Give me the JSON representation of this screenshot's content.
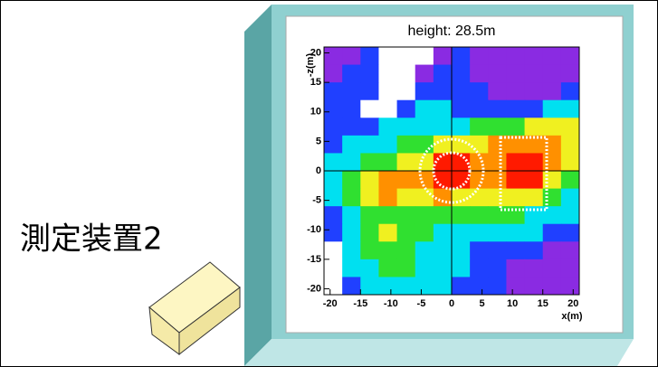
{
  "label": "測定装置2",
  "chart_data": {
    "type": "heatmap",
    "title": "height: 28.5m",
    "xlabel": "x(m)",
    "ylabel": "-z(m)",
    "xlim": [
      -21,
      21
    ],
    "ylim": [
      -21,
      21
    ],
    "xticks": [
      -20,
      -15,
      -10,
      -5,
      0,
      5,
      10,
      15,
      20
    ],
    "yticks": [
      -20,
      -15,
      -10,
      -5,
      0,
      5,
      10,
      15,
      20
    ],
    "xbins": [
      -21,
      -18,
      -15,
      -12,
      -9,
      -6,
      -3,
      0,
      3,
      6,
      9,
      12,
      15,
      18,
      21
    ],
    "ybins": [
      21,
      18,
      15,
      12,
      9,
      6,
      3,
      0,
      -3,
      -6,
      -9,
      -12,
      -15,
      -18,
      -21
    ],
    "colors": [
      "#ffffff",
      "#8a2be2",
      "#2040ff",
      "#00e0f0",
      "#30e030",
      "#f0f020",
      "#ff9000",
      "#ff1a00"
    ],
    "z": [
      [
        1,
        1,
        2,
        0,
        0,
        0,
        1,
        2,
        1,
        1,
        1,
        1,
        1,
        1
      ],
      [
        1,
        2,
        2,
        0,
        0,
        1,
        2,
        2,
        1,
        1,
        1,
        1,
        1,
        1
      ],
      [
        2,
        2,
        2,
        0,
        0,
        2,
        2,
        2,
        2,
        1,
        1,
        1,
        1,
        2
      ],
      [
        2,
        2,
        0,
        0,
        2,
        3,
        3,
        2,
        2,
        2,
        2,
        2,
        3,
        3
      ],
      [
        2,
        2,
        2,
        3,
        3,
        3,
        3,
        3,
        4,
        4,
        4,
        5,
        5,
        5
      ],
      [
        2,
        3,
        3,
        3,
        4,
        4,
        5,
        5,
        5,
        6,
        6,
        6,
        6,
        5
      ],
      [
        3,
        3,
        4,
        4,
        5,
        5,
        7,
        7,
        6,
        6,
        7,
        7,
        6,
        5
      ],
      [
        3,
        4,
        5,
        6,
        6,
        6,
        7,
        7,
        6,
        6,
        7,
        7,
        5,
        4
      ],
      [
        3,
        4,
        5,
        6,
        5,
        5,
        6,
        5,
        5,
        5,
        5,
        5,
        4,
        3
      ],
      [
        2,
        3,
        4,
        4,
        4,
        4,
        4,
        4,
        4,
        4,
        4,
        3,
        3,
        3
      ],
      [
        2,
        3,
        4,
        5,
        4,
        4,
        3,
        3,
        3,
        3,
        3,
        3,
        2,
        2
      ],
      [
        0,
        3,
        4,
        4,
        4,
        3,
        3,
        3,
        2,
        2,
        2,
        2,
        1,
        1
      ],
      [
        0,
        3,
        3,
        4,
        4,
        3,
        3,
        3,
        2,
        2,
        1,
        1,
        1,
        1
      ],
      [
        0,
        2,
        3,
        3,
        3,
        3,
        3,
        2,
        2,
        2,
        1,
        1,
        1,
        1
      ]
    ]
  }
}
